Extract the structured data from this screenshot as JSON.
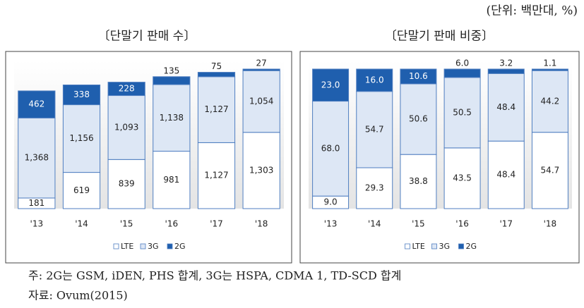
{
  "unit": "(단위: 백만대, %)",
  "chart_data": [
    {
      "type": "bar",
      "stacked": true,
      "title": "〔단말기 판매 수〕",
      "categories": [
        "'13",
        "'14",
        "'15",
        "'16",
        "'17",
        "'18"
      ],
      "series": [
        {
          "name": "LTE",
          "color": "#ffffff",
          "values": [
            181,
            619,
            839,
            981,
            1127,
            1303
          ],
          "value_labels": [
            "181",
            "619",
            "839",
            "981",
            "1,127",
            "1,303"
          ]
        },
        {
          "name": "3G",
          "color": "#dde7f5",
          "values": [
            1368,
            1156,
            1093,
            1138,
            1127,
            1054
          ],
          "value_labels": [
            "1,368",
            "1,156",
            "1,093",
            "1,138",
            "1,127",
            "1,054"
          ]
        },
        {
          "name": "2G",
          "color": "#1f5fae",
          "values": [
            462,
            338,
            228,
            135,
            75,
            27
          ],
          "value_labels": [
            "462",
            "338",
            "228",
            "135",
            "75",
            "27"
          ]
        }
      ]
    },
    {
      "type": "bar",
      "stacked": true,
      "title": "〔단말기 판매 비중〕",
      "categories": [
        "'13",
        "'14",
        "'15",
        "'16",
        "'17",
        "'18"
      ],
      "series": [
        {
          "name": "LTE",
          "color": "#ffffff",
          "values": [
            9.0,
            29.3,
            38.8,
            43.5,
            48.4,
            54.7
          ],
          "value_labels": [
            "9.0",
            "29.3",
            "38.8",
            "43.5",
            "48.4",
            "54.7"
          ]
        },
        {
          "name": "3G",
          "color": "#dde7f5",
          "values": [
            68.0,
            54.7,
            50.6,
            50.5,
            48.4,
            44.2
          ],
          "value_labels": [
            "68.0",
            "54.7",
            "50.6",
            "50.5",
            "48.4",
            "44.2"
          ]
        },
        {
          "name": "2G",
          "color": "#1f5fae",
          "values": [
            23.0,
            16.0,
            10.6,
            6.0,
            3.2,
            1.1
          ],
          "value_labels": [
            "23.0",
            "16.0",
            "10.6",
            "6.0",
            "3.2",
            "1.1"
          ]
        }
      ]
    }
  ],
  "notes": [
    "주: 2G는 GSM, iDEN, PHS 합계, 3G는 HSPA, CDMA 1, TD-SCD 합계",
    "자료: Ovum(2015)"
  ]
}
